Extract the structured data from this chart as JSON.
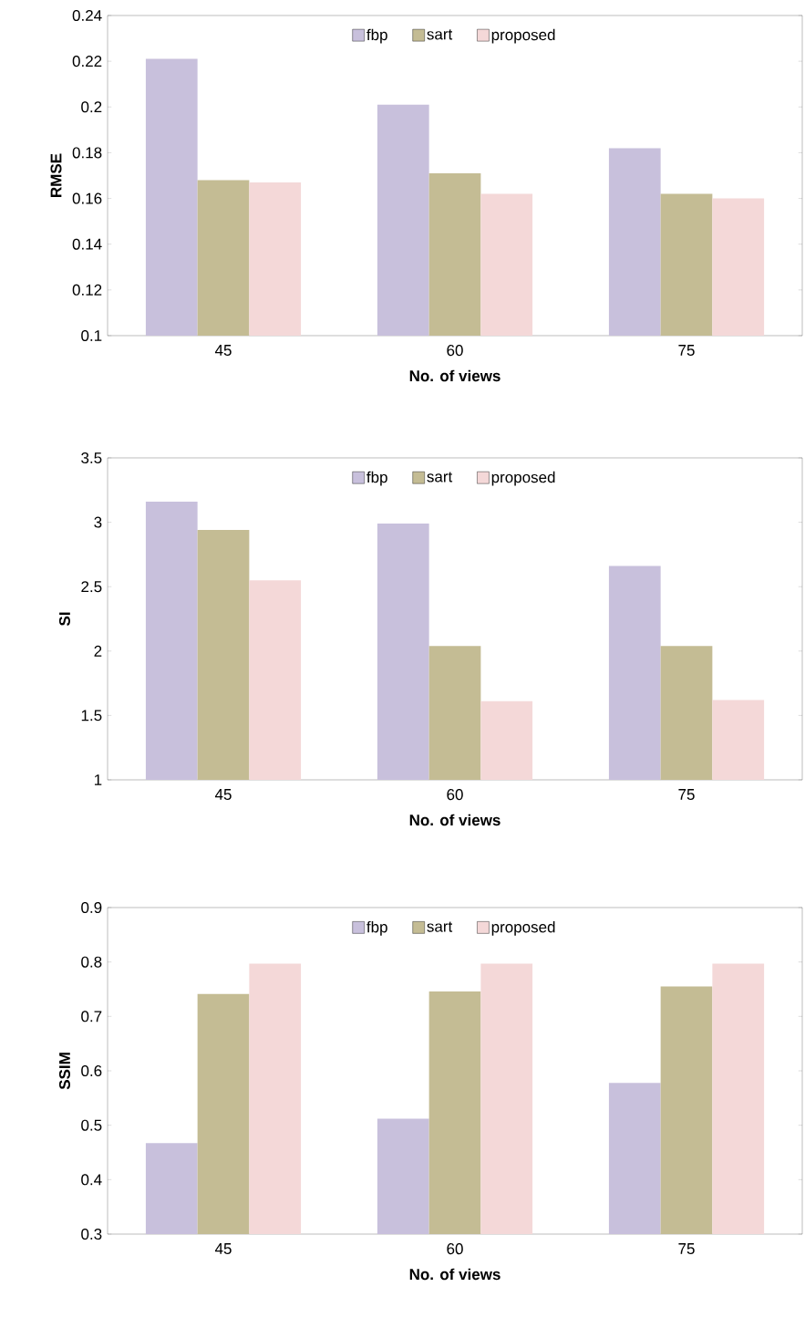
{
  "chart_data": [
    {
      "type": "bar",
      "categories": [
        "45",
        "60",
        "75"
      ],
      "xlabel": "No. of views",
      "ylabel": "RMSE",
      "legend": "top",
      "ylim": [
        0.1,
        0.24
      ],
      "yticks": [
        0.1,
        0.12,
        0.14,
        0.16,
        0.18,
        0.2,
        0.22,
        0.24
      ],
      "series": [
        {
          "name": "fbp",
          "color": "#c8c0dc",
          "values": [
            0.221,
            0.201,
            0.182
          ]
        },
        {
          "name": "sart",
          "color": "#c4bc94",
          "values": [
            0.168,
            0.171,
            0.162
          ]
        },
        {
          "name": "proposed",
          "color": "#f4d8d8",
          "values": [
            0.167,
            0.162,
            0.16
          ]
        }
      ]
    },
    {
      "type": "bar",
      "categories": [
        "45",
        "60",
        "75"
      ],
      "xlabel": "No. of views",
      "ylabel": "SI",
      "legend": "top",
      "ylim": [
        1,
        3.5
      ],
      "yticks": [
        1,
        1.5,
        2,
        2.5,
        3,
        3.5
      ],
      "series": [
        {
          "name": "fbp",
          "color": "#c8c0dc",
          "values": [
            3.16,
            2.99,
            2.66
          ]
        },
        {
          "name": "sart",
          "color": "#c4bc94",
          "values": [
            2.94,
            2.04,
            2.04
          ]
        },
        {
          "name": "proposed",
          "color": "#f4d8d8",
          "values": [
            2.55,
            1.61,
            1.62
          ]
        }
      ]
    },
    {
      "type": "bar",
      "categories": [
        "45",
        "60",
        "75"
      ],
      "xlabel": "No. of views",
      "ylabel": "SSIM",
      "legend": "top",
      "ylim": [
        0.3,
        0.9
      ],
      "yticks": [
        0.3,
        0.4,
        0.5,
        0.6,
        0.7,
        0.8,
        0.9
      ],
      "series": [
        {
          "name": "fbp",
          "color": "#c8c0dc",
          "values": [
            0.467,
            0.512,
            0.578
          ]
        },
        {
          "name": "sart",
          "color": "#c4bc94",
          "values": [
            0.741,
            0.746,
            0.755
          ]
        },
        {
          "name": "proposed",
          "color": "#f4d8d8",
          "values": [
            0.797,
            0.797,
            0.797
          ]
        }
      ]
    }
  ]
}
